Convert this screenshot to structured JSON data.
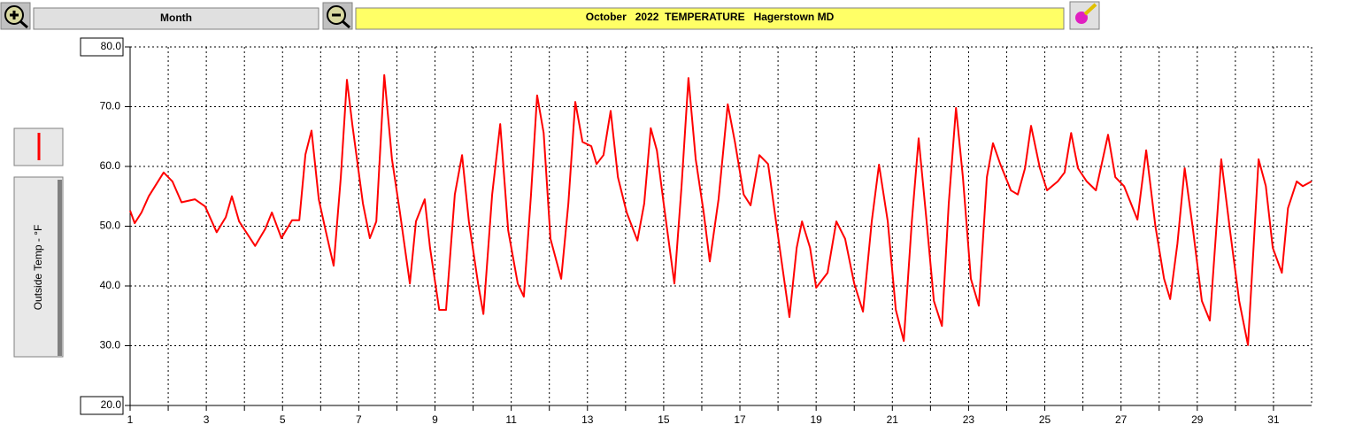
{
  "toolbar": {
    "period": "Month"
  },
  "chart_data": {
    "type": "line",
    "title": "October   2022  TEMPERATURE   Hagerstown MD",
    "y_label": "Outside Temp - °F",
    "xlim": [
      1,
      32
    ],
    "xticks": [
      1,
      3,
      5,
      7,
      9,
      11,
      13,
      15,
      17,
      19,
      21,
      23,
      25,
      27,
      29,
      31
    ],
    "xminorticks": [
      2,
      4,
      6,
      8,
      10,
      12,
      14,
      16,
      18,
      20,
      22,
      24,
      26,
      28,
      30
    ],
    "ylim": [
      20,
      80
    ],
    "yticks": [
      {
        "value": 20,
        "label": "20.0"
      },
      {
        "value": 30,
        "label": "30.0"
      },
      {
        "value": 40,
        "label": "40.0"
      },
      {
        "value": 50,
        "label": "50.0"
      },
      {
        "value": 60,
        "label": "60.0"
      },
      {
        "value": 70,
        "label": "70.0"
      },
      {
        "value": 80,
        "label": "80.0"
      }
    ],
    "grid": true,
    "series": [
      {
        "name": "Outside Temp",
        "color": "#ff0000",
        "x": [
          1.0,
          1.12,
          1.3,
          1.49,
          1.88,
          2.11,
          2.35,
          2.7,
          2.97,
          3.27,
          3.51,
          3.67,
          3.86,
          4.28,
          4.55,
          4.72,
          4.97,
          5.25,
          5.44,
          5.6,
          5.76,
          5.95,
          6.13,
          6.34,
          6.53,
          6.69,
          6.83,
          7.11,
          7.29,
          7.46,
          7.67,
          7.87,
          8.08,
          8.34,
          8.5,
          8.73,
          8.87,
          9.11,
          9.29,
          9.52,
          9.71,
          9.89,
          10.13,
          10.27,
          10.5,
          10.71,
          10.92,
          11.17,
          11.33,
          11.52,
          11.68,
          11.85,
          12.03,
          12.31,
          12.5,
          12.68,
          12.87,
          13.1,
          13.24,
          13.42,
          13.61,
          13.8,
          14.03,
          14.31,
          14.49,
          14.66,
          14.82,
          15.0,
          15.28,
          15.47,
          15.65,
          15.84,
          16.05,
          16.21,
          16.44,
          16.68,
          16.87,
          17.1,
          17.28,
          17.51,
          17.74,
          17.98,
          18.3,
          18.49,
          18.63,
          18.84,
          19.0,
          19.3,
          19.53,
          19.76,
          20.0,
          20.23,
          20.46,
          20.65,
          20.88,
          21.09,
          21.3,
          21.51,
          21.69,
          21.9,
          22.09,
          22.3,
          22.48,
          22.67,
          22.85,
          23.06,
          23.27,
          23.48,
          23.64,
          23.83,
          24.11,
          24.29,
          24.48,
          24.64,
          24.87,
          25.06,
          25.34,
          25.52,
          25.69,
          25.87,
          26.1,
          26.34,
          26.52,
          26.66,
          26.85,
          27.08,
          27.43,
          27.66,
          27.9,
          28.13,
          28.29,
          28.48,
          28.67,
          28.89,
          29.12,
          29.33,
          29.63,
          29.86,
          30.1,
          30.33,
          30.61,
          30.8,
          30.98,
          31.22,
          31.38,
          31.61,
          31.77,
          32.0
        ],
        "values": [
          52.6,
          50.5,
          52.3,
          55,
          59,
          57.5,
          54,
          54.5,
          53.3,
          49,
          51.5,
          55,
          50.8,
          46.7,
          49.6,
          52.3,
          48,
          51,
          51,
          62,
          66,
          54.5,
          49.3,
          43.4,
          58.2,
          74.5,
          67,
          53.8,
          48,
          50.8,
          75.3,
          61.2,
          52.3,
          40.4,
          50.8,
          54.5,
          46.4,
          36,
          36,
          55.3,
          61.9,
          50.8,
          40.4,
          35.3,
          55.3,
          67.1,
          49.3,
          40.4,
          38.2,
          55.3,
          71.9,
          65.6,
          47.9,
          41.2,
          53.8,
          70.8,
          64.1,
          63.4,
          60.4,
          61.9,
          69.3,
          58.2,
          52.3,
          47.6,
          53.8,
          66.4,
          62.7,
          53.8,
          40.4,
          56.7,
          74.8,
          61.2,
          52.3,
          44.1,
          54.5,
          70.4,
          64.1,
          55.3,
          53.5,
          61.9,
          60.4,
          49.3,
          34.8,
          46.4,
          50.8,
          46.4,
          39.7,
          42.2,
          50.8,
          47.9,
          40.4,
          35.7,
          50.8,
          60.3,
          50.8,
          36,
          30.8,
          50.8,
          64.7,
          50.8,
          37.5,
          33.3,
          53.8,
          69.8,
          58.2,
          41.2,
          36.7,
          58.2,
          63.9,
          60.4,
          56,
          55.3,
          59.7,
          66.8,
          59.7,
          56,
          57.5,
          59,
          65.6,
          59.7,
          57.5,
          56,
          61.2,
          65.3,
          58.2,
          56.7,
          51.1,
          62.7,
          50.1,
          41.2,
          37.8,
          47.1,
          59.7,
          49.3,
          37.5,
          34.2,
          61.2,
          49.3,
          37.5,
          30.1,
          61.2,
          56.7,
          46.4,
          42.2,
          53,
          57.5,
          56.7,
          57.5
        ]
      }
    ]
  }
}
